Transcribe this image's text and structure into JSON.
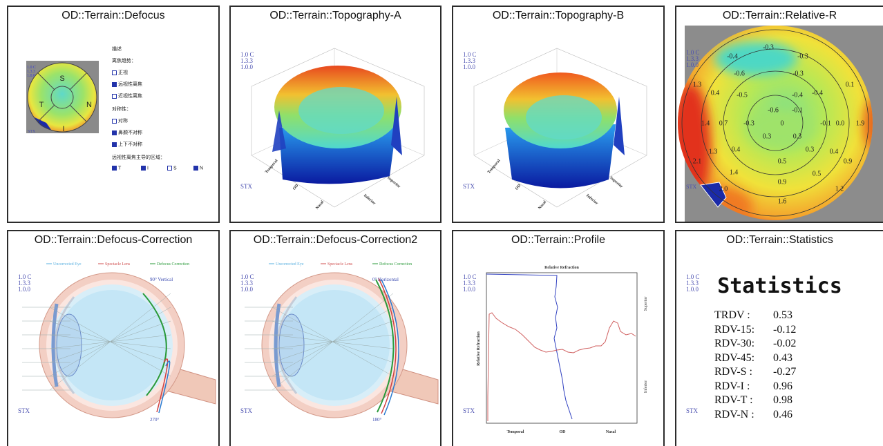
{
  "panels": [
    {
      "title": "OD::Terrain::Defocus"
    },
    {
      "title": "OD::Terrain::Topography-A"
    },
    {
      "title": "OD::Terrain::Topography-B"
    },
    {
      "title": "OD::Terrain::Relative-R"
    },
    {
      "title": "OD::Terrain::Defocus-Correction"
    },
    {
      "title": "OD::Terrain::Defocus-Correction2"
    },
    {
      "title": "OD::Terrain::Profile"
    },
    {
      "title": "OD::Terrain::Statistics"
    }
  ],
  "version_labels": [
    "1.0 C",
    "1.3.3",
    "1.0.0"
  ],
  "stx": "STX",
  "defocus": {
    "heading": "描述",
    "trend_label": "离焦趋势：",
    "trend_options": [
      "正视",
      "远视性离焦",
      "近视性离焦"
    ],
    "symmetry_label": "对称性：",
    "symmetry_options": [
      "对称",
      "鼻颞不对称",
      "上下不对称"
    ],
    "region_label": "远视性离焦主导的区域：",
    "regions": [
      "T",
      "I",
      "S",
      "N"
    ],
    "map_labels": [
      "S",
      "T",
      "N",
      "I"
    ]
  },
  "topography_axes": [
    "Temporal",
    "OD",
    "Nasal",
    "Superior",
    "Inferior"
  ],
  "relative_r_values": [
    "-0.3",
    "-0.4",
    "-0.3",
    "-0.6",
    "-0.3",
    "1.3",
    "0.4",
    "-0.5",
    "-0.4",
    "-0.4",
    "0.1",
    "-0.6",
    "-0.1",
    "1.4",
    "0.7",
    "-0.3",
    "0",
    "-0.1",
    "0.0",
    "1.9",
    "0.3",
    "0.3",
    "1.3",
    "0.4",
    "0.3",
    "0.4",
    "2.1",
    "0.5",
    "0.9",
    "1.4",
    "0.5",
    "0.9",
    "2.0",
    "1.2",
    "1.6"
  ],
  "correction": {
    "legend": [
      "Uncorrected Eye",
      "Spectacle Lens",
      "Defocus Correction"
    ],
    "angles_a": [
      "90° Vertical",
      "270°"
    ],
    "angles_b": [
      "0° Horizontal",
      "180°"
    ]
  },
  "profile": {
    "axis_title": "Relative Refraction",
    "labels": [
      "Superior",
      "Inferior",
      "Temporal",
      "OD",
      "Nasal"
    ]
  },
  "statistics": {
    "title": "Statistics",
    "rows": [
      {
        "label": "TRDV :",
        "value": 0.53
      },
      {
        "label": "RDV-15:",
        "value": -0.12
      },
      {
        "label": "RDV-30:",
        "value": -0.02
      },
      {
        "label": "RDV-45:",
        "value": 0.43
      },
      {
        "label": "RDV-S :",
        "value": -0.27
      },
      {
        "label": "RDV-I :",
        "value": 0.96
      },
      {
        "label": "RDV-T :",
        "value": 0.98
      },
      {
        "label": "RDV-N :",
        "value": 0.46
      }
    ]
  }
}
